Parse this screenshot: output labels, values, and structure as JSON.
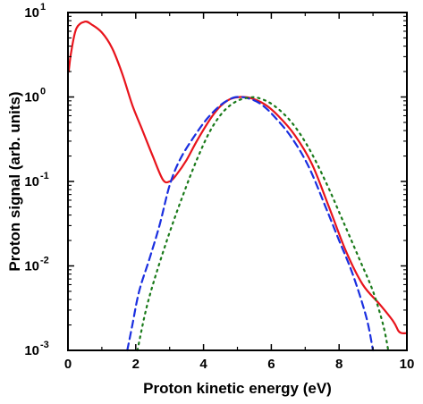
{
  "chart_data": {
    "type": "line",
    "title": "",
    "xlabel": "Proton kinetic energy (eV)",
    "ylabel": "Proton signal (arb. units)",
    "xlim": [
      0,
      10
    ],
    "ylim": [
      0.001,
      10
    ],
    "yscale": "log",
    "grid": false,
    "x_ticks": [
      0,
      2,
      4,
      6,
      8,
      10
    ],
    "y_ticks": [
      {
        "value": 0.001,
        "base": "10",
        "exp": "-3"
      },
      {
        "value": 0.01,
        "base": "10",
        "exp": "-2"
      },
      {
        "value": 0.1,
        "base": "10",
        "exp": "-1"
      },
      {
        "value": 1,
        "base": "10",
        "exp": "0"
      },
      {
        "value": 10,
        "base": "10",
        "exp": "1"
      }
    ],
    "series": [
      {
        "style": "solid",
        "color": "#e8141c",
        "points": [
          [
            0.02,
            2.0
          ],
          [
            0.1,
            3.5
          ],
          [
            0.25,
            6.5
          ],
          [
            0.5,
            7.8
          ],
          [
            0.7,
            7.2
          ],
          [
            1.0,
            5.8
          ],
          [
            1.3,
            3.8
          ],
          [
            1.6,
            1.9
          ],
          [
            1.9,
            0.8
          ],
          [
            2.2,
            0.4
          ],
          [
            2.5,
            0.2
          ],
          [
            2.8,
            0.105
          ],
          [
            3.0,
            0.1
          ],
          [
            3.2,
            0.12
          ],
          [
            3.5,
            0.18
          ],
          [
            3.8,
            0.3
          ],
          [
            4.2,
            0.55
          ],
          [
            4.5,
            0.78
          ],
          [
            4.8,
            0.95
          ],
          [
            5.1,
            1.0
          ],
          [
            5.4,
            0.97
          ],
          [
            5.8,
            0.82
          ],
          [
            6.2,
            0.6
          ],
          [
            6.7,
            0.35
          ],
          [
            7.2,
            0.16
          ],
          [
            7.7,
            0.05
          ],
          [
            8.2,
            0.015
          ],
          [
            8.7,
            0.006
          ],
          [
            9.2,
            0.0035
          ],
          [
            9.6,
            0.0022
          ],
          [
            9.75,
            0.0017
          ],
          [
            9.85,
            0.0016
          ],
          [
            10.0,
            0.0016
          ]
        ]
      },
      {
        "style": "dashed",
        "color": "#1a2fe0",
        "points": [
          [
            1.75,
            0.001
          ],
          [
            1.9,
            0.002
          ],
          [
            2.1,
            0.005
          ],
          [
            2.4,
            0.012
          ],
          [
            2.7,
            0.03
          ],
          [
            3.0,
            0.09
          ],
          [
            3.3,
            0.18
          ],
          [
            3.7,
            0.33
          ],
          [
            4.1,
            0.55
          ],
          [
            4.5,
            0.8
          ],
          [
            4.8,
            0.95
          ],
          [
            5.0,
            1.0
          ],
          [
            5.3,
            0.97
          ],
          [
            5.7,
            0.82
          ],
          [
            6.1,
            0.58
          ],
          [
            6.6,
            0.33
          ],
          [
            7.1,
            0.15
          ],
          [
            7.6,
            0.05
          ],
          [
            8.0,
            0.02
          ],
          [
            8.4,
            0.008
          ],
          [
            8.8,
            0.0025
          ],
          [
            9.0,
            0.001
          ]
        ]
      },
      {
        "style": "dotted",
        "color": "#1a7a1a",
        "points": [
          [
            2.05,
            0.001
          ],
          [
            2.3,
            0.003
          ],
          [
            2.6,
            0.008
          ],
          [
            3.0,
            0.025
          ],
          [
            3.4,
            0.07
          ],
          [
            3.8,
            0.18
          ],
          [
            4.2,
            0.4
          ],
          [
            4.6,
            0.68
          ],
          [
            5.0,
            0.9
          ],
          [
            5.4,
            0.99
          ],
          [
            5.7,
            0.95
          ],
          [
            6.1,
            0.78
          ],
          [
            6.6,
            0.5
          ],
          [
            7.1,
            0.25
          ],
          [
            7.6,
            0.1
          ],
          [
            8.1,
            0.035
          ],
          [
            8.6,
            0.012
          ],
          [
            9.0,
            0.005
          ],
          [
            9.3,
            0.002
          ],
          [
            9.45,
            0.001
          ]
        ]
      }
    ]
  }
}
